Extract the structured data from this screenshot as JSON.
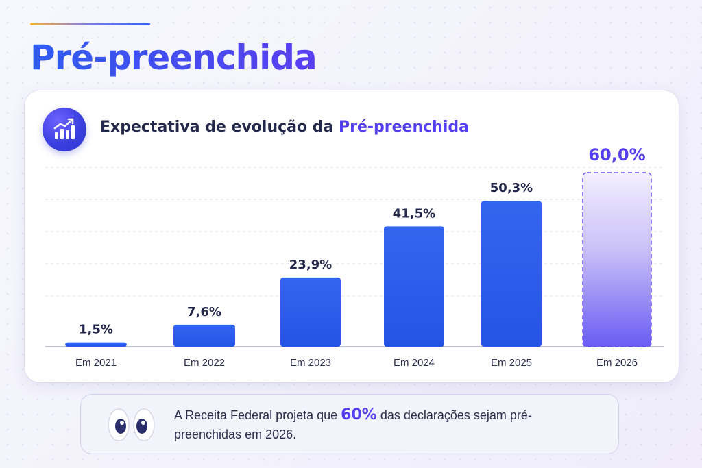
{
  "page_title": "Pré-preenchida",
  "card": {
    "icon": "trend-up-chart-icon",
    "title_main": "Expectativa de evolução da ",
    "title_highlight": "Pré-preenchida"
  },
  "colors": {
    "bar_blue": "#2f5de9",
    "accent_purple": "#5540ef",
    "dark_text": "#23284b"
  },
  "chart_data": {
    "type": "bar",
    "categories": [
      "Em 2021",
      "Em 2022",
      "Em 2023",
      "Em 2024",
      "Em 2025",
      "Em 2026"
    ],
    "values": [
      1.5,
      7.6,
      23.9,
      41.5,
      50.3,
      60.0
    ],
    "value_labels": [
      "1,5%",
      "7,6%",
      "23,9%",
      "41,5%",
      "50,3%",
      "60,0%"
    ],
    "projected": [
      false,
      false,
      false,
      false,
      false,
      true
    ],
    "title": "Expectativa de evolução da Pré-preenchida",
    "xlabel": "",
    "ylabel": "",
    "ylim": [
      0,
      60
    ],
    "grid": true,
    "legend": "none"
  },
  "note": {
    "icon": "eyes-icon",
    "text_before": "A Receita Federal projeta que ",
    "highlight": "60%",
    "text_after": "  das declarações sejam pré-preenchidas em 2026."
  }
}
